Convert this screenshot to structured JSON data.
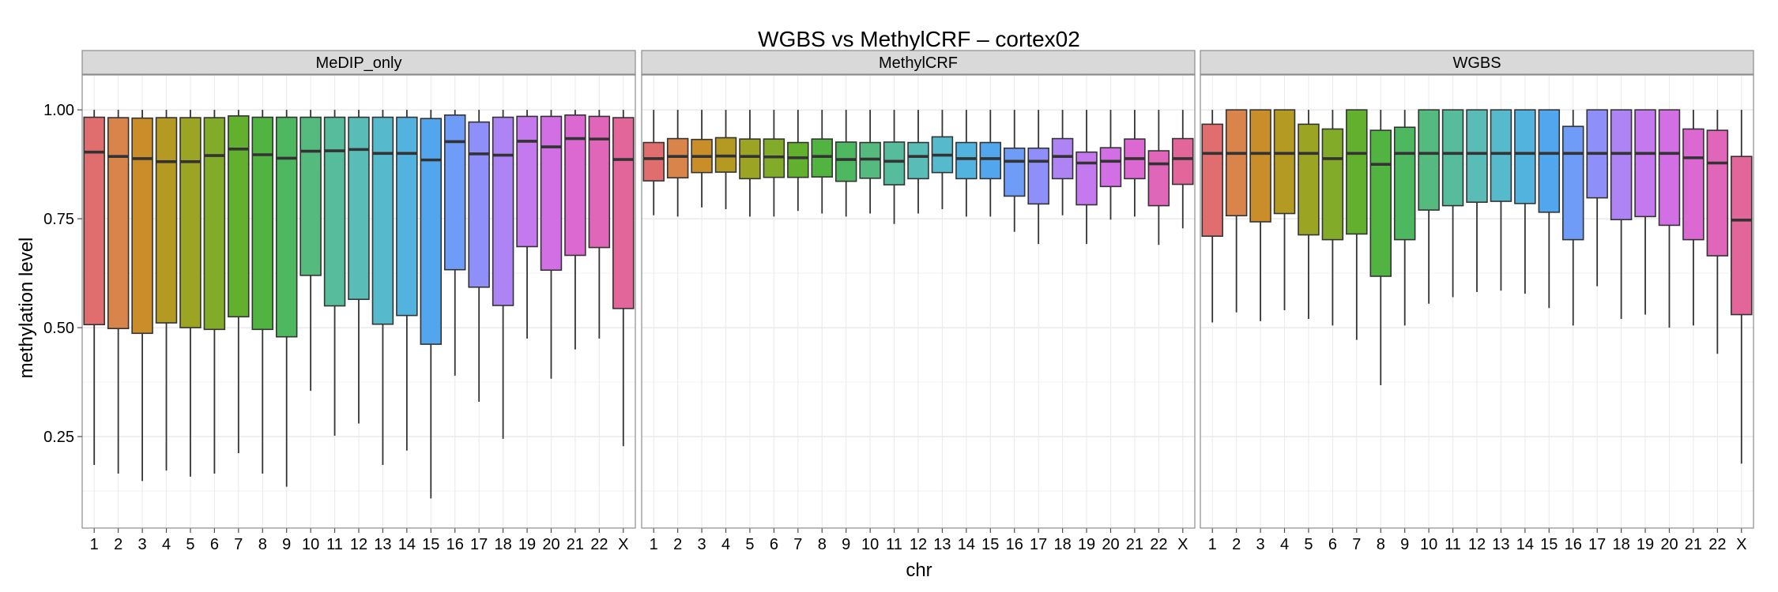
{
  "chart_data": {
    "type": "boxplot",
    "title": "WGBS vs MethylCRF – cortex02",
    "xlabel": "chr",
    "ylabel": "methylation level",
    "ylim": [
      0.04,
      1.08
    ],
    "y_ticks": [
      0.25,
      0.5,
      0.75,
      1.0
    ],
    "y_tick_labels": [
      "0.25",
      "0.50",
      "0.75",
      "1.00"
    ],
    "grid": true,
    "categories": [
      "1",
      "2",
      "3",
      "4",
      "5",
      "6",
      "7",
      "8",
      "9",
      "10",
      "11",
      "12",
      "13",
      "14",
      "15",
      "16",
      "17",
      "18",
      "19",
      "20",
      "21",
      "22",
      "X"
    ],
    "colors": [
      "#E06E6E",
      "#D9844A",
      "#C98E2A",
      "#B49A22",
      "#9CA423",
      "#83AB2A",
      "#62B02E",
      "#52B440",
      "#4DB85F",
      "#55BA7D",
      "#56BC9B",
      "#5ABCB7",
      "#56B9CC",
      "#52B3DF",
      "#52A6EE",
      "#6E9CF7",
      "#8E8FF8",
      "#AE83F4",
      "#C479EE",
      "#D26FE5",
      "#DB69D1",
      "#DF66B8",
      "#E26699"
    ],
    "panels": [
      {
        "name": "MeDIP_only",
        "boxes": [
          {
            "q1": 0.507,
            "median": 0.903,
            "q3": 0.983,
            "whisker_low": 0.185,
            "whisker_high": 1.0
          },
          {
            "q1": 0.498,
            "median": 0.893,
            "q3": 0.982,
            "whisker_low": 0.165,
            "whisker_high": 1.0
          },
          {
            "q1": 0.487,
            "median": 0.888,
            "q3": 0.981,
            "whisker_low": 0.148,
            "whisker_high": 1.0
          },
          {
            "q1": 0.511,
            "median": 0.881,
            "q3": 0.982,
            "whisker_low": 0.172,
            "whisker_high": 1.0
          },
          {
            "q1": 0.5,
            "median": 0.881,
            "q3": 0.982,
            "whisker_low": 0.158,
            "whisker_high": 1.0
          },
          {
            "q1": 0.496,
            "median": 0.895,
            "q3": 0.982,
            "whisker_low": 0.165,
            "whisker_high": 1.0
          },
          {
            "q1": 0.525,
            "median": 0.91,
            "q3": 0.986,
            "whisker_low": 0.212,
            "whisker_high": 1.0
          },
          {
            "q1": 0.496,
            "median": 0.897,
            "q3": 0.983,
            "whisker_low": 0.165,
            "whisker_high": 1.0
          },
          {
            "q1": 0.479,
            "median": 0.889,
            "q3": 0.983,
            "whisker_low": 0.135,
            "whisker_high": 1.0
          },
          {
            "q1": 0.62,
            "median": 0.905,
            "q3": 0.983,
            "whisker_low": 0.355,
            "whisker_high": 1.0
          },
          {
            "q1": 0.55,
            "median": 0.906,
            "q3": 0.983,
            "whisker_low": 0.252,
            "whisker_high": 1.0
          },
          {
            "q1": 0.565,
            "median": 0.909,
            "q3": 0.983,
            "whisker_low": 0.28,
            "whisker_high": 1.0
          },
          {
            "q1": 0.508,
            "median": 0.9,
            "q3": 0.983,
            "whisker_low": 0.185,
            "whisker_high": 1.0
          },
          {
            "q1": 0.528,
            "median": 0.9,
            "q3": 0.983,
            "whisker_low": 0.218,
            "whisker_high": 1.0
          },
          {
            "q1": 0.462,
            "median": 0.885,
            "q3": 0.98,
            "whisker_low": 0.108,
            "whisker_high": 1.0
          },
          {
            "q1": 0.633,
            "median": 0.927,
            "q3": 0.988,
            "whisker_low": 0.39,
            "whisker_high": 1.0
          },
          {
            "q1": 0.593,
            "median": 0.899,
            "q3": 0.972,
            "whisker_low": 0.33,
            "whisker_high": 1.0
          },
          {
            "q1": 0.551,
            "median": 0.896,
            "q3": 0.983,
            "whisker_low": 0.245,
            "whisker_high": 1.0
          },
          {
            "q1": 0.686,
            "median": 0.928,
            "q3": 0.985,
            "whisker_low": 0.475,
            "whisker_high": 1.0
          },
          {
            "q1": 0.632,
            "median": 0.915,
            "q3": 0.985,
            "whisker_low": 0.383,
            "whisker_high": 1.0
          },
          {
            "q1": 0.666,
            "median": 0.934,
            "q3": 0.988,
            "whisker_low": 0.45,
            "whisker_high": 1.0
          },
          {
            "q1": 0.684,
            "median": 0.933,
            "q3": 0.985,
            "whisker_low": 0.475,
            "whisker_high": 1.0
          },
          {
            "q1": 0.544,
            "median": 0.886,
            "q3": 0.982,
            "whisker_low": 0.228,
            "whisker_high": 1.0
          }
        ]
      },
      {
        "name": "MethylCRF",
        "boxes": [
          {
            "q1": 0.837,
            "median": 0.888,
            "q3": 0.925,
            "whisker_low": 0.758,
            "whisker_high": 1.0
          },
          {
            "q1": 0.844,
            "median": 0.893,
            "q3": 0.934,
            "whisker_low": 0.755,
            "whisker_high": 1.0
          },
          {
            "q1": 0.856,
            "median": 0.893,
            "q3": 0.932,
            "whisker_low": 0.776,
            "whisker_high": 1.0
          },
          {
            "q1": 0.857,
            "median": 0.894,
            "q3": 0.936,
            "whisker_low": 0.772,
            "whisker_high": 1.0
          },
          {
            "q1": 0.842,
            "median": 0.893,
            "q3": 0.933,
            "whisker_low": 0.755,
            "whisker_high": 1.0
          },
          {
            "q1": 0.845,
            "median": 0.892,
            "q3": 0.933,
            "whisker_low": 0.755,
            "whisker_high": 1.0
          },
          {
            "q1": 0.845,
            "median": 0.89,
            "q3": 0.925,
            "whisker_low": 0.768,
            "whisker_high": 1.0
          },
          {
            "q1": 0.846,
            "median": 0.893,
            "q3": 0.933,
            "whisker_low": 0.762,
            "whisker_high": 1.0
          },
          {
            "q1": 0.836,
            "median": 0.886,
            "q3": 0.926,
            "whisker_low": 0.755,
            "whisker_high": 1.0
          },
          {
            "q1": 0.843,
            "median": 0.887,
            "q3": 0.925,
            "whisker_low": 0.762,
            "whisker_high": 1.0
          },
          {
            "q1": 0.828,
            "median": 0.882,
            "q3": 0.926,
            "whisker_low": 0.738,
            "whisker_high": 1.0
          },
          {
            "q1": 0.842,
            "median": 0.893,
            "q3": 0.925,
            "whisker_low": 0.762,
            "whisker_high": 1.0
          },
          {
            "q1": 0.856,
            "median": 0.896,
            "q3": 0.938,
            "whisker_low": 0.772,
            "whisker_high": 1.0
          },
          {
            "q1": 0.842,
            "median": 0.888,
            "q3": 0.925,
            "whisker_low": 0.755,
            "whisker_high": 1.0
          },
          {
            "q1": 0.842,
            "median": 0.888,
            "q3": 0.925,
            "whisker_low": 0.755,
            "whisker_high": 1.0
          },
          {
            "q1": 0.802,
            "median": 0.882,
            "q3": 0.912,
            "whisker_low": 0.72,
            "whisker_high": 1.0
          },
          {
            "q1": 0.784,
            "median": 0.882,
            "q3": 0.912,
            "whisker_low": 0.692,
            "whisker_high": 1.0
          },
          {
            "q1": 0.842,
            "median": 0.893,
            "q3": 0.934,
            "whisker_low": 0.758,
            "whisker_high": 1.0
          },
          {
            "q1": 0.782,
            "median": 0.878,
            "q3": 0.903,
            "whisker_low": 0.692,
            "whisker_high": 1.0
          },
          {
            "q1": 0.824,
            "median": 0.882,
            "q3": 0.913,
            "whisker_low": 0.748,
            "whisker_high": 1.0
          },
          {
            "q1": 0.842,
            "median": 0.888,
            "q3": 0.933,
            "whisker_low": 0.755,
            "whisker_high": 1.0
          },
          {
            "q1": 0.78,
            "median": 0.876,
            "q3": 0.906,
            "whisker_low": 0.69,
            "whisker_high": 1.0
          },
          {
            "q1": 0.829,
            "median": 0.888,
            "q3": 0.934,
            "whisker_low": 0.728,
            "whisker_high": 1.0
          }
        ]
      },
      {
        "name": "WGBS",
        "boxes": [
          {
            "q1": 0.71,
            "median": 0.9,
            "q3": 0.967,
            "whisker_low": 0.512,
            "whisker_high": 1.0
          },
          {
            "q1": 0.757,
            "median": 0.9,
            "q3": 1.0,
            "whisker_low": 0.535,
            "whisker_high": 1.0
          },
          {
            "q1": 0.743,
            "median": 0.9,
            "q3": 1.0,
            "whisker_low": 0.515,
            "whisker_high": 1.0
          },
          {
            "q1": 0.762,
            "median": 0.9,
            "q3": 1.0,
            "whisker_low": 0.54,
            "whisker_high": 1.0
          },
          {
            "q1": 0.713,
            "median": 0.9,
            "q3": 0.967,
            "whisker_low": 0.52,
            "whisker_high": 1.0
          },
          {
            "q1": 0.702,
            "median": 0.888,
            "q3": 0.956,
            "whisker_low": 0.505,
            "whisker_high": 1.0
          },
          {
            "q1": 0.715,
            "median": 0.9,
            "q3": 1.0,
            "whisker_low": 0.472,
            "whisker_high": 1.0
          },
          {
            "q1": 0.618,
            "median": 0.875,
            "q3": 0.953,
            "whisker_low": 0.368,
            "whisker_high": 1.0
          },
          {
            "q1": 0.702,
            "median": 0.9,
            "q3": 0.96,
            "whisker_low": 0.505,
            "whisker_high": 1.0
          },
          {
            "q1": 0.77,
            "median": 0.9,
            "q3": 1.0,
            "whisker_low": 0.555,
            "whisker_high": 1.0
          },
          {
            "q1": 0.78,
            "median": 0.9,
            "q3": 1.0,
            "whisker_low": 0.57,
            "whisker_high": 1.0
          },
          {
            "q1": 0.788,
            "median": 0.9,
            "q3": 1.0,
            "whisker_low": 0.582,
            "whisker_high": 1.0
          },
          {
            "q1": 0.79,
            "median": 0.9,
            "q3": 1.0,
            "whisker_low": 0.585,
            "whisker_high": 1.0
          },
          {
            "q1": 0.785,
            "median": 0.9,
            "q3": 1.0,
            "whisker_low": 0.578,
            "whisker_high": 1.0
          },
          {
            "q1": 0.765,
            "median": 0.9,
            "q3": 1.0,
            "whisker_low": 0.545,
            "whisker_high": 1.0
          },
          {
            "q1": 0.702,
            "median": 0.9,
            "q3": 0.962,
            "whisker_low": 0.505,
            "whisker_high": 1.0
          },
          {
            "q1": 0.798,
            "median": 0.9,
            "q3": 1.0,
            "whisker_low": 0.595,
            "whisker_high": 1.0
          },
          {
            "q1": 0.748,
            "median": 0.9,
            "q3": 1.0,
            "whisker_low": 0.52,
            "whisker_high": 1.0
          },
          {
            "q1": 0.755,
            "median": 0.9,
            "q3": 1.0,
            "whisker_low": 0.53,
            "whisker_high": 1.0
          },
          {
            "q1": 0.735,
            "median": 0.9,
            "q3": 1.0,
            "whisker_low": 0.5,
            "whisker_high": 1.0
          },
          {
            "q1": 0.702,
            "median": 0.89,
            "q3": 0.956,
            "whisker_low": 0.505,
            "whisker_high": 1.0
          },
          {
            "q1": 0.665,
            "median": 0.878,
            "q3": 0.953,
            "whisker_low": 0.44,
            "whisker_high": 1.0
          },
          {
            "q1": 0.53,
            "median": 0.747,
            "q3": 0.893,
            "whisker_low": 0.188,
            "whisker_high": 1.0
          }
        ]
      }
    ]
  }
}
